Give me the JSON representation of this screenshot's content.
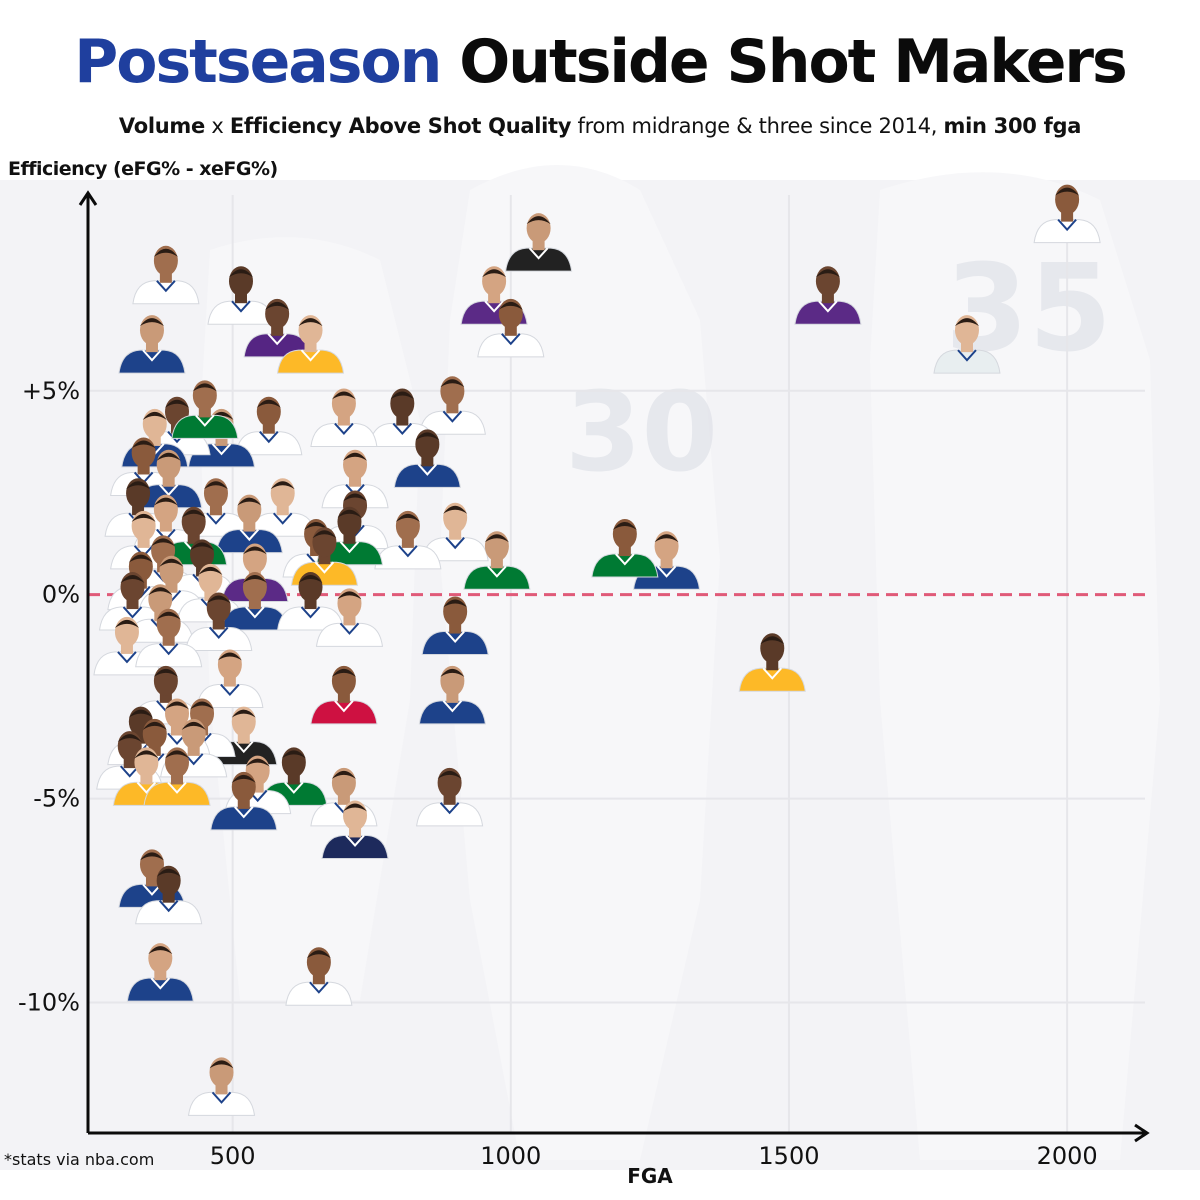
{
  "header": {
    "title_accent": "Postseason",
    "title_rest": "Outside Shot Makers",
    "subtitle_volume": "Volume",
    "subtitle_x": " x ",
    "subtitle_efficiency": "Efficiency Above Shot Quality",
    "subtitle_middle": " from midrange & three since 2014, ",
    "subtitle_min": "min 300 fga"
  },
  "footer": {
    "source": "*stats via nba.com"
  },
  "colors": {
    "axis": "#0b0b0b",
    "zero_line": "#e05a78",
    "gridline": "#e6e6ea",
    "title_accent": "#1f3f9e",
    "background_photo_tint": "#ecedf1"
  },
  "chart_data": {
    "type": "scatter",
    "title": "Postseason Outside Shot Makers",
    "xlabel": "FGA",
    "ylabel": "Efficiency (eFG% - xeFG%)",
    "xlim": [
      240,
      2140
    ],
    "ylim": [
      -13.2,
      9.8
    ],
    "x_ticks": [
      500,
      1000,
      1500,
      2000
    ],
    "x_tick_labels": [
      "500",
      "1000",
      "1500",
      "2000"
    ],
    "y_ticks": [
      -10,
      -5,
      0,
      5
    ],
    "y_tick_labels": [
      "-10%",
      "-5%",
      "0%",
      "+5%"
    ],
    "reference_line": {
      "y": 0,
      "style": "dashed"
    },
    "grid": true,
    "marker": "player headshot",
    "points": [
      {
        "x": 2000,
        "y": 9.0,
        "jersey": "#ffffff"
      },
      {
        "x": 1050,
        "y": 8.3,
        "jersey": "#222222"
      },
      {
        "x": 1570,
        "y": 7.0,
        "jersey": "#5b2a86"
      },
      {
        "x": 1820,
        "y": 5.8,
        "jersey": "#e8eef0"
      },
      {
        "x": 380,
        "y": 7.5,
        "jersey": "#ffffff"
      },
      {
        "x": 515,
        "y": 7.0,
        "jersey": "#ffffff"
      },
      {
        "x": 970,
        "y": 7.0,
        "jersey": "#5b2a86"
      },
      {
        "x": 1000,
        "y": 6.2,
        "jersey": "#ffffff"
      },
      {
        "x": 355,
        "y": 5.8,
        "jersey": "#1d428a"
      },
      {
        "x": 580,
        "y": 6.2,
        "jersey": "#552583"
      },
      {
        "x": 640,
        "y": 5.8,
        "jersey": "#fdb927"
      },
      {
        "x": 895,
        "y": 4.3,
        "jersey": "#ffffff"
      },
      {
        "x": 805,
        "y": 4.0,
        "jersey": "#ffffff"
      },
      {
        "x": 700,
        "y": 4.0,
        "jersey": "#ffffff"
      },
      {
        "x": 565,
        "y": 3.8,
        "jersey": "#ffffff"
      },
      {
        "x": 480,
        "y": 3.5,
        "jersey": "#1d428a"
      },
      {
        "x": 400,
        "y": 3.8,
        "jersey": "#ffffff"
      },
      {
        "x": 360,
        "y": 3.5,
        "jersey": "#1d428a"
      },
      {
        "x": 450,
        "y": 4.2,
        "jersey": "#007a33"
      },
      {
        "x": 850,
        "y": 3.0,
        "jersey": "#1d428a"
      },
      {
        "x": 720,
        "y": 2.5,
        "jersey": "#ffffff"
      },
      {
        "x": 340,
        "y": 2.8,
        "jersey": "#ffffff"
      },
      {
        "x": 385,
        "y": 2.5,
        "jersey": "#1d428a"
      },
      {
        "x": 720,
        "y": 1.5,
        "jersey": "#ffffff"
      },
      {
        "x": 590,
        "y": 1.8,
        "jersey": "#ffffff"
      },
      {
        "x": 470,
        "y": 1.8,
        "jersey": "#ffffff"
      },
      {
        "x": 330,
        "y": 1.8,
        "jersey": "#ffffff"
      },
      {
        "x": 380,
        "y": 1.4,
        "jersey": "#ffffff"
      },
      {
        "x": 650,
        "y": 0.8,
        "jersey": "#ffffff"
      },
      {
        "x": 530,
        "y": 1.4,
        "jersey": "#1d428a"
      },
      {
        "x": 430,
        "y": 1.1,
        "jersey": "#007a33"
      },
      {
        "x": 900,
        "y": 1.2,
        "jersey": "#ffffff"
      },
      {
        "x": 815,
        "y": 1.0,
        "jersey": "#ffffff"
      },
      {
        "x": 710,
        "y": 1.1,
        "jersey": "#007a33"
      },
      {
        "x": 1280,
        "y": 0.5,
        "jersey": "#1d428a"
      },
      {
        "x": 1205,
        "y": 0.8,
        "jersey": "#007a33"
      },
      {
        "x": 975,
        "y": 0.5,
        "jersey": "#007a33"
      },
      {
        "x": 665,
        "y": 0.6,
        "jersey": "#fdb927"
      },
      {
        "x": 340,
        "y": 1.0,
        "jersey": "#ffffff"
      },
      {
        "x": 375,
        "y": 0.4,
        "jersey": "#ffffff"
      },
      {
        "x": 445,
        "y": 0.3,
        "jersey": "#ffffff"
      },
      {
        "x": 540,
        "y": 0.2,
        "jersey": "#5b2a86"
      },
      {
        "x": 335,
        "y": 0.0,
        "jersey": "#ffffff"
      },
      {
        "x": 390,
        "y": -0.1,
        "jersey": "#ffffff"
      },
      {
        "x": 320,
        "y": -0.5,
        "jersey": "#ffffff"
      },
      {
        "x": 460,
        "y": -0.3,
        "jersey": "#ffffff"
      },
      {
        "x": 540,
        "y": -0.5,
        "jersey": "#1d428a"
      },
      {
        "x": 640,
        "y": -0.5,
        "jersey": "#ffffff"
      },
      {
        "x": 710,
        "y": -0.9,
        "jersey": "#ffffff"
      },
      {
        "x": 900,
        "y": -1.1,
        "jersey": "#1d428a"
      },
      {
        "x": 370,
        "y": -0.8,
        "jersey": "#ffffff"
      },
      {
        "x": 475,
        "y": -1.0,
        "jersey": "#ffffff"
      },
      {
        "x": 310,
        "y": -1.6,
        "jersey": "#ffffff"
      },
      {
        "x": 385,
        "y": -1.4,
        "jersey": "#ffffff"
      },
      {
        "x": 1470,
        "y": -2.0,
        "jersey": "#fdb927"
      },
      {
        "x": 495,
        "y": -2.4,
        "jersey": "#ffffff"
      },
      {
        "x": 700,
        "y": -2.8,
        "jersey": "#ce1141"
      },
      {
        "x": 895,
        "y": -2.8,
        "jersey": "#1d428a"
      },
      {
        "x": 380,
        "y": -2.8,
        "jersey": "#ffffff"
      },
      {
        "x": 520,
        "y": -3.8,
        "jersey": "#222222"
      },
      {
        "x": 445,
        "y": -3.6,
        "jersey": "#ffffff"
      },
      {
        "x": 335,
        "y": -3.8,
        "jersey": "#ffffff"
      },
      {
        "x": 400,
        "y": -3.6,
        "jersey": "#ffffff"
      },
      {
        "x": 360,
        "y": -4.1,
        "jersey": "#ffffff"
      },
      {
        "x": 430,
        "y": -4.1,
        "jersey": "#ffffff"
      },
      {
        "x": 315,
        "y": -4.4,
        "jersey": "#ffffff"
      },
      {
        "x": 345,
        "y": -4.8,
        "jersey": "#fdb927"
      },
      {
        "x": 400,
        "y": -4.8,
        "jersey": "#fdb927"
      },
      {
        "x": 610,
        "y": -4.8,
        "jersey": "#007a33"
      },
      {
        "x": 545,
        "y": -5.0,
        "jersey": "#ffffff"
      },
      {
        "x": 520,
        "y": -5.4,
        "jersey": "#1d428a"
      },
      {
        "x": 700,
        "y": -5.3,
        "jersey": "#ffffff"
      },
      {
        "x": 890,
        "y": -5.3,
        "jersey": "#ffffff"
      },
      {
        "x": 720,
        "y": -6.1,
        "jersey": "#1d2a5c"
      },
      {
        "x": 355,
        "y": -7.3,
        "jersey": "#1d428a"
      },
      {
        "x": 385,
        "y": -7.7,
        "jersey": "#ffffff"
      },
      {
        "x": 370,
        "y": -9.6,
        "jersey": "#1d428a"
      },
      {
        "x": 655,
        "y": -9.7,
        "jersey": "#ffffff"
      },
      {
        "x": 480,
        "y": -12.4,
        "jersey": "#ffffff"
      }
    ]
  }
}
